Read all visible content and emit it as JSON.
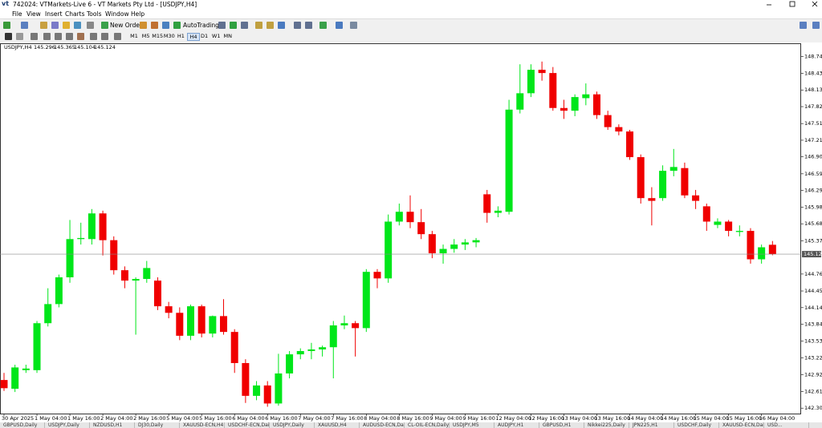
{
  "window": {
    "logo": "vt",
    "title": "742024: VTMarkets-Live 6 - VT Markets Pty Ltd - [USDJPY,H4]"
  },
  "menu": [
    "File",
    "View",
    "Insert",
    "Charts",
    "Tools",
    "Window",
    "Help"
  ],
  "toolbar": {
    "new_order": "New Order",
    "autotrading": "AutoTrading",
    "timeframes": [
      "M1",
      "M5",
      "M15",
      "M30",
      "H1",
      "H4",
      "D1",
      "W1",
      "MN"
    ]
  },
  "chart_data": {
    "type": "candlestick",
    "title": "USDJPY,H4",
    "categories": [
      "30 Apr 2025",
      null,
      null,
      "1 May 04:00",
      null,
      null,
      "1 May 16:00",
      null,
      null,
      "2 May 04:00",
      null,
      null,
      "2 May 16:00",
      null,
      null,
      "5 May 04:00",
      null,
      null,
      "5 May 16:00",
      null,
      null,
      "6 May 04:00",
      null,
      null,
      "6 May 16:00",
      null,
      null,
      "7 May 04:00",
      null,
      null,
      "7 May 16:00",
      null,
      null,
      "8 May 04:00",
      null,
      null,
      "8 May 16:00",
      null,
      null,
      "9 May 04:00",
      null,
      null,
      "9 May 16:00",
      null,
      null,
      "12 May 04:00",
      null,
      null,
      "12 May 16:00",
      null,
      null,
      "13 May 04:00",
      null,
      null,
      "13 May 16:00",
      null,
      null,
      "14 May 04:00",
      null,
      null,
      "14 May 16:00",
      null,
      null,
      "15 May 04:00",
      null,
      null,
      "15 May 16:00",
      null,
      null,
      "16 May 04:00",
      null
    ],
    "open": [
      142.82,
      142.66,
      143.0,
      143.0,
      143.86,
      144.21,
      144.7,
      145.4,
      145.4,
      145.87,
      145.38,
      144.83,
      144.64,
      144.67,
      144.64,
      144.17,
      144.05,
      143.63,
      144.17,
      143.67,
      143.99,
      143.7,
      143.13,
      142.53,
      142.72,
      142.39,
      142.94,
      143.29,
      143.35,
      143.38,
      143.42,
      143.82,
      143.86,
      143.77,
      144.8,
      144.68,
      145.72,
      145.9,
      145.71,
      145.49,
      145.14,
      145.22,
      145.3,
      145.34,
      146.22,
      145.88,
      145.9,
      147.77,
      148.07,
      148.5,
      148.44,
      147.8,
      147.75,
      147.98,
      148.05,
      147.67,
      147.45,
      147.37,
      146.9,
      146.15,
      146.15,
      146.65,
      146.7,
      146.2,
      146.0,
      145.66,
      145.72,
      145.53,
      145.55,
      145.03,
      145.296
    ],
    "high": [
      142.95,
      143.1,
      143.1,
      143.9,
      144.5,
      144.75,
      145.75,
      145.7,
      145.95,
      145.92,
      145.45,
      144.9,
      144.7,
      145.0,
      144.7,
      144.25,
      144.15,
      144.2,
      144.2,
      144.0,
      144.3,
      143.75,
      143.2,
      142.8,
      142.8,
      143.3,
      143.35,
      143.4,
      143.5,
      143.45,
      143.9,
      144.0,
      143.9,
      144.85,
      144.85,
      145.85,
      146.05,
      146.2,
      145.95,
      145.55,
      145.3,
      145.4,
      145.4,
      145.42,
      146.3,
      146.0,
      147.95,
      148.6,
      148.6,
      148.65,
      148.55,
      147.95,
      148.05,
      148.25,
      148.1,
      147.75,
      147.5,
      147.4,
      146.95,
      146.35,
      146.75,
      147.05,
      146.8,
      146.3,
      146.05,
      145.78,
      145.75,
      145.65,
      145.6,
      145.3,
      145.365
    ],
    "low": [
      142.62,
      142.6,
      142.95,
      142.95,
      143.8,
      144.15,
      144.6,
      145.3,
      145.3,
      145.1,
      144.75,
      144.5,
      143.65,
      144.6,
      144.1,
      143.95,
      143.55,
      143.55,
      143.6,
      143.6,
      143.65,
      142.95,
      142.4,
      142.45,
      142.33,
      142.35,
      142.85,
      143.2,
      143.2,
      143.25,
      142.85,
      143.75,
      143.25,
      143.7,
      144.5,
      144.6,
      145.65,
      145.6,
      145.4,
      145.05,
      144.95,
      145.15,
      145.2,
      145.25,
      145.7,
      145.8,
      145.85,
      147.7,
      148.0,
      148.3,
      147.75,
      147.6,
      147.65,
      147.85,
      147.6,
      147.4,
      147.3,
      146.85,
      146.05,
      145.65,
      146.1,
      146.55,
      146.15,
      145.95,
      145.55,
      145.6,
      145.45,
      145.45,
      144.95,
      144.95,
      145.104
    ],
    "close": [
      142.67,
      143.05,
      143.03,
      143.86,
      144.21,
      144.7,
      145.4,
      145.42,
      145.87,
      145.38,
      144.83,
      144.64,
      144.67,
      144.87,
      144.17,
      144.05,
      143.63,
      144.17,
      143.67,
      143.99,
      143.7,
      143.13,
      142.53,
      142.72,
      142.39,
      142.94,
      143.29,
      143.35,
      143.38,
      143.42,
      143.82,
      143.86,
      143.77,
      144.8,
      144.68,
      145.72,
      145.9,
      145.71,
      145.49,
      145.14,
      145.22,
      145.3,
      145.34,
      145.38,
      145.88,
      145.92,
      147.77,
      148.07,
      148.5,
      148.44,
      147.8,
      147.75,
      148.0,
      148.05,
      147.67,
      147.45,
      147.37,
      146.9,
      146.15,
      146.1,
      146.65,
      146.72,
      146.2,
      146.1,
      145.72,
      145.72,
      145.55,
      145.55,
      145.03,
      145.25,
      145.124
    ],
    "up_color": "#00e61a",
    "down_color": "#f00000",
    "ylim": [
      142.22,
      148.97
    ],
    "yticks": [
      148.745,
      148.435,
      {
        "value": 148.13,
        "label": "148.130"
      },
      147.825,
      147.515,
      {
        "value": 147.21,
        "label": "147.210"
      },
      146.905,
      146.595,
      {
        "value": 146.29,
        "label": "146.290"
      },
      145.985,
      {
        "value": 145.68,
        "label": "145.680"
      },
      {
        "value": 145.37,
        "label": "145.370"
      },
      {
        "value": 144.76,
        "label": "144.760"
      },
      {
        "value": 144.45,
        "label": "144.450"
      },
      144.145,
      {
        "value": 143.84,
        "label": "143.840"
      },
      {
        "value": 143.53,
        "label": "143.530"
      },
      143.225,
      {
        "value": 142.92,
        "label": "142.920"
      },
      {
        "value": 142.61,
        "label": "142.610"
      },
      142.305
    ],
    "grid": false
  },
  "tabs": [
    "GBPUSD,Daily",
    "USDJPY,Daily",
    "NZDUSD,H1",
    "DJ30,Daily",
    "XAUUSD-ECN,H4",
    "USDCHF-ECN,Daily",
    "USDJPY,Daily",
    "XAUUSD,H4",
    "AUDUSD-ECN,Daily",
    "CL-OIL-ECN,Daily",
    "USDJPY,M5",
    "AUDJPY,H1",
    "GBPUSD,H1",
    "Nikkei225,Daily",
    "JPN225,H1",
    "USDCHF,Daily",
    "XAUUSD-ECN,Daily",
    "USD..."
  ]
}
